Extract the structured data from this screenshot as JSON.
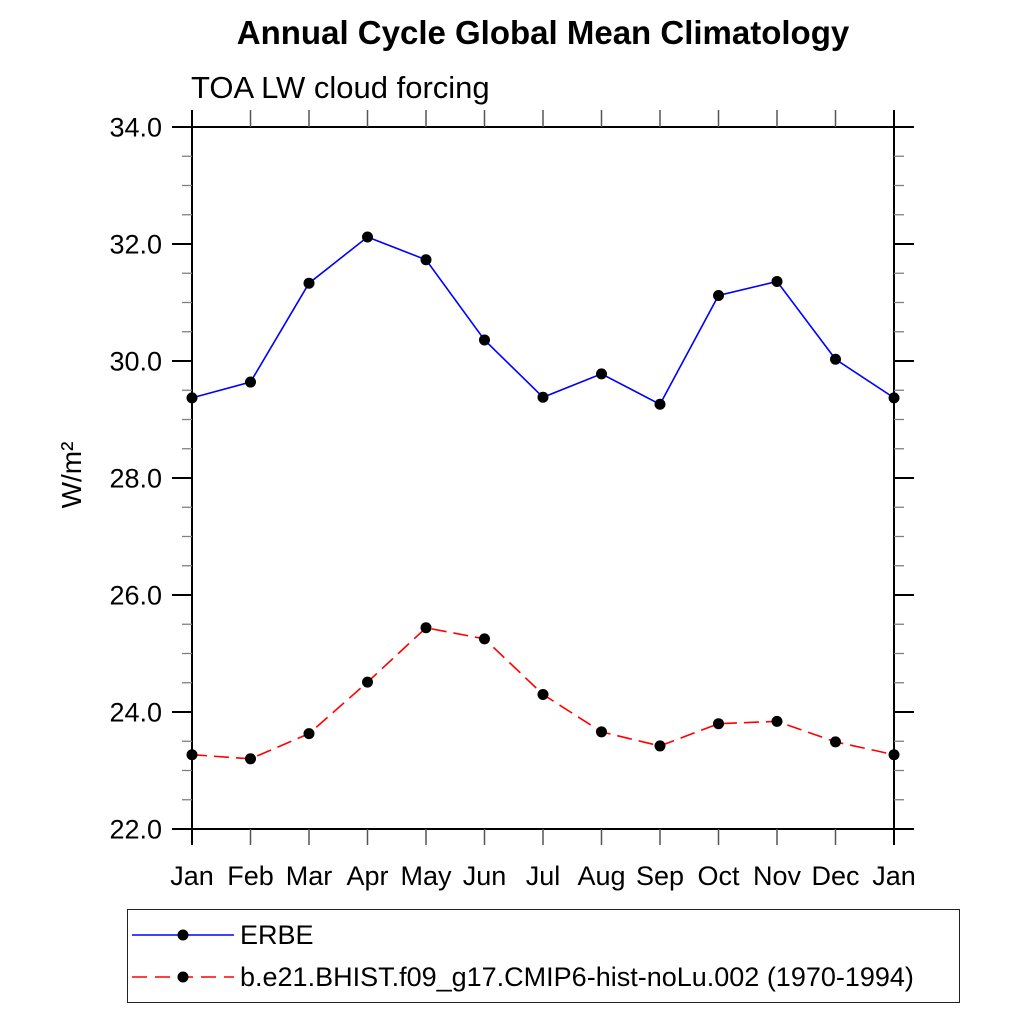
{
  "title": "Annual Cycle Global Mean Climatology",
  "subtitle": "TOA LW cloud forcing",
  "chart_data": {
    "type": "line",
    "ylabel": "W/m²",
    "categories": [
      "Jan",
      "Feb",
      "Mar",
      "Apr",
      "May",
      "Jun",
      "Jul",
      "Aug",
      "Sep",
      "Oct",
      "Nov",
      "Dec",
      "Jan"
    ],
    "ylim": [
      22.0,
      34.0
    ],
    "ytick_major": [
      22,
      24,
      26,
      28,
      30,
      32,
      34
    ],
    "ytick_labels": [
      "22.0",
      "24.0",
      "26.0",
      "28.0",
      "30.0",
      "32.0",
      "34.0"
    ],
    "ytick_minor_step": 0.5,
    "grid": false,
    "legend_position": "bottom-left-outside",
    "axis_color": "#000000",
    "minor_tick_color": "#808080",
    "series": [
      {
        "name": "ERBE",
        "color": "#0000ff",
        "line_style": "solid",
        "marker": "filled-circle",
        "marker_color": "#000000",
        "values": [
          29.37,
          29.64,
          31.33,
          32.12,
          31.73,
          30.36,
          29.38,
          29.78,
          29.26,
          31.12,
          31.36,
          30.03,
          29.37
        ]
      },
      {
        "name": "b.e21.BHIST.f09_g17.CMIP6-hist-noLu.002 (1970-1994)",
        "color": "#ff0000",
        "line_style": "dashed",
        "marker": "filled-circle",
        "marker_color": "#000000",
        "values": [
          23.27,
          23.2,
          23.63,
          24.51,
          25.44,
          25.25,
          24.3,
          23.66,
          23.42,
          23.8,
          23.84,
          23.49,
          23.27
        ]
      }
    ]
  }
}
